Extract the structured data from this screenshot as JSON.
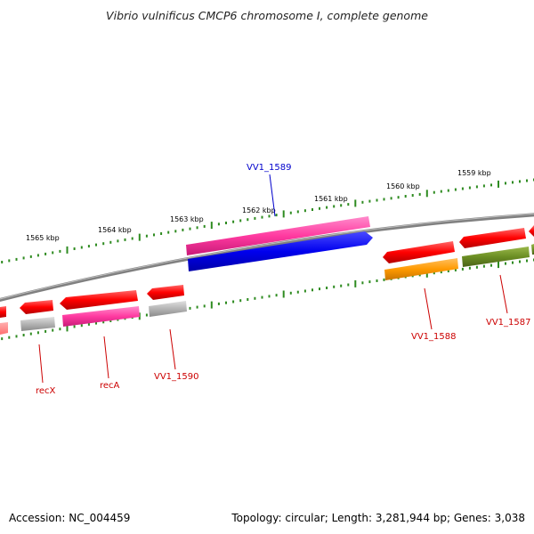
{
  "title": "Vibrio vulnificus CMCP6 chromosome I, complete genome",
  "footer": {
    "accession": "Accession: NC_004459",
    "topology": "Topology: circular; Length: 3,281,944 bp; Genes: 3,038"
  },
  "ruler": {
    "outer_labels": [
      "1565 kbp",
      "1564 kbp",
      "1563 kbp",
      "1562 kbp",
      "1561 kbp",
      "1560 kbp",
      "1559 kbp"
    ],
    "tick_color": "#2e8b20"
  },
  "colors": {
    "backbone": "#808080",
    "forward_cds": "#ff0000",
    "reverse_cds": "#ff0000",
    "gene_pink": "#ff3aa0",
    "gene_blue": "#0000ee",
    "gene_grey": "#b4b4b4",
    "gene_orange": "#ff9a00",
    "gene_olive": "#6b8e23",
    "label_red": "#cc0000",
    "label_blue": "#0000cc"
  },
  "gene_labels": [
    {
      "id": "vv1-1589",
      "text": "VV1_1589",
      "color": "#0000cc"
    },
    {
      "id": "recx",
      "text": "recX",
      "color": "#cc0000"
    },
    {
      "id": "reca",
      "text": "recA",
      "color": "#cc0000"
    },
    {
      "id": "vv1-1590",
      "text": "VV1_1590",
      "color": "#cc0000"
    },
    {
      "id": "vv1-1588",
      "text": "VV1_1588",
      "color": "#cc0000"
    },
    {
      "id": "vv1-1587",
      "text": "VV1_1587",
      "color": "#cc0000"
    }
  ]
}
